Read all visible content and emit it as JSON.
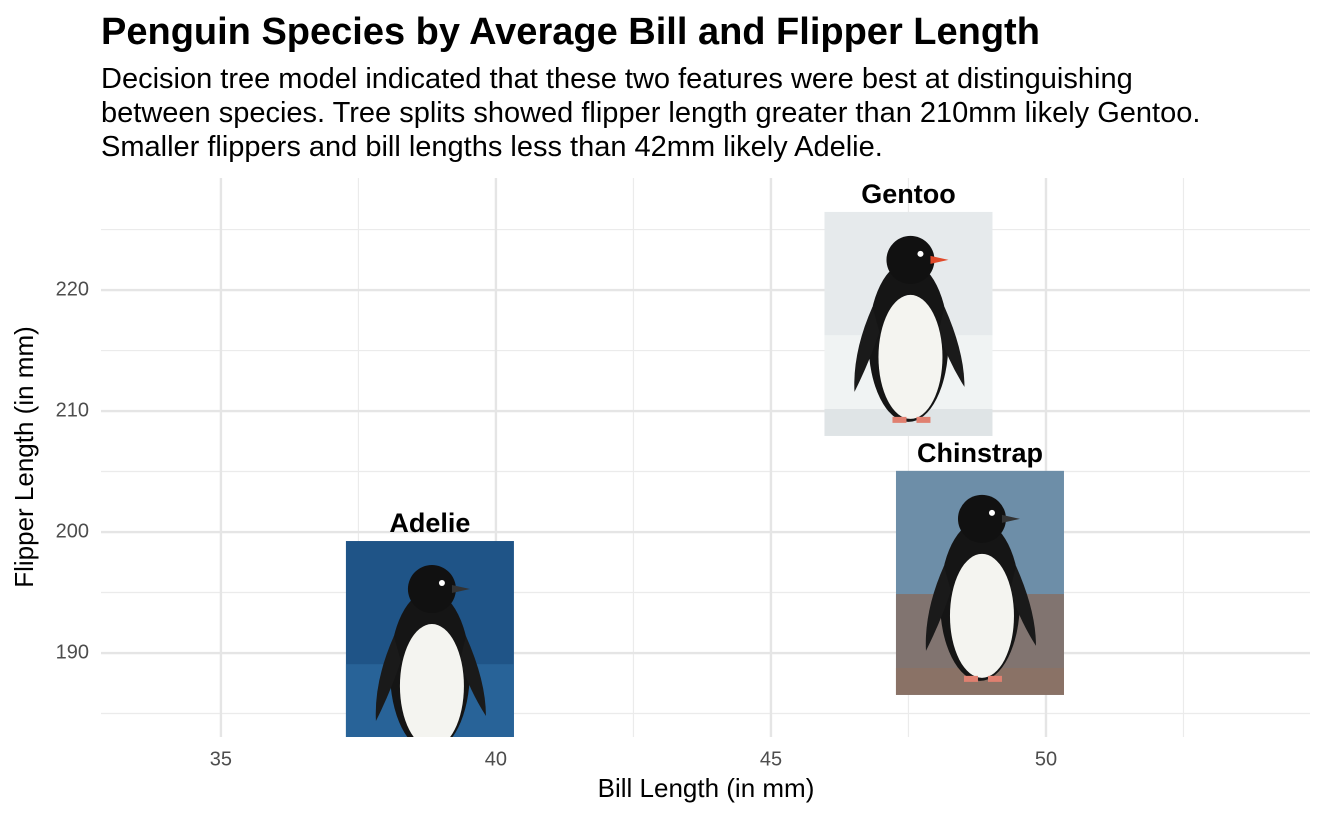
{
  "chart_data": {
    "type": "scatter",
    "title": "Penguin Species by Average Bill and Flipper Length",
    "subtitle": [
      "Decision tree model indicated that these two features were best at distinguishing",
      "between species. Tree splits showed flipper length greater than 210mm likely Gentoo.",
      "Smaller flippers and bill lengths less than 42mm likely Adelie."
    ],
    "xlabel": "Bill Length (in mm)",
    "ylabel": "Flipper Length (in mm)",
    "labels": [
      "Adelie",
      "Chinstrap",
      "Gentoo"
    ],
    "x": [
      38.8,
      48.8,
      47.5
    ],
    "values": [
      190.0,
      195.8,
      217.2
    ],
    "xlim": [
      32.82,
      54.8
    ],
    "ylim": [
      183.06,
      229.26
    ],
    "xticks": [
      35,
      40,
      45,
      50
    ],
    "yticks": [
      190,
      200,
      210,
      220
    ],
    "grid": true
  }
}
